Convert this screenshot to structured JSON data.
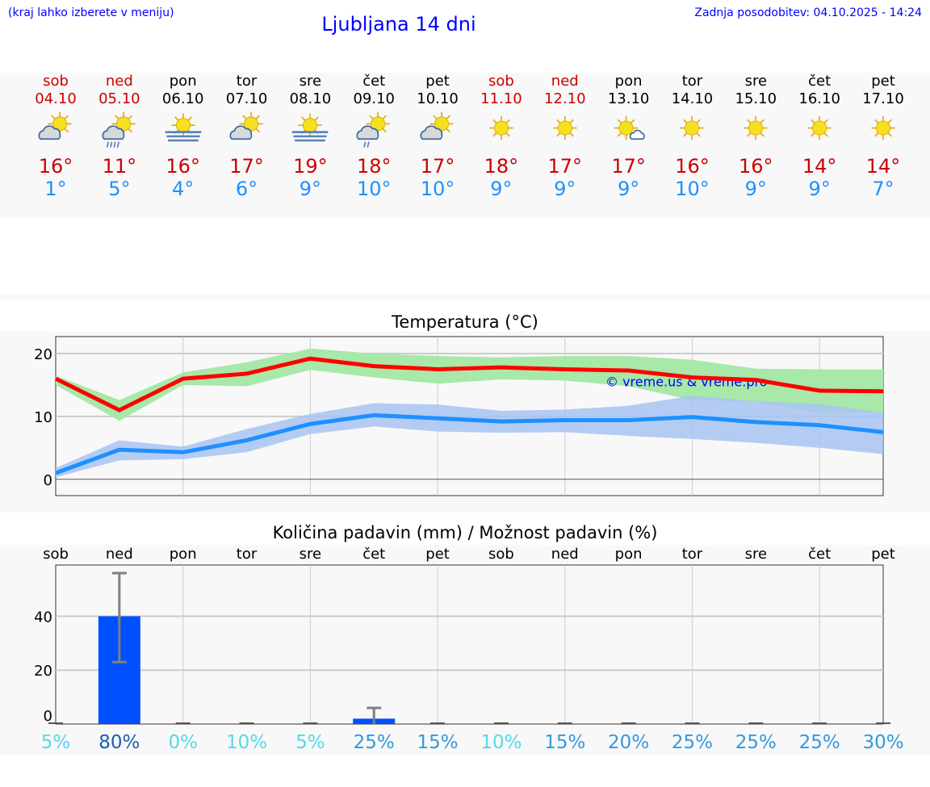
{
  "header": {
    "hint": "(kraj lahko izberete v meniju)",
    "title": "Ljubljana 14 dni",
    "updated": "Zadnja posodobitev: 04.10.2025 - 14:24"
  },
  "days": [
    {
      "name": "sob",
      "date": "04.10",
      "weekend": true,
      "icon": "partly-cloudy-icon",
      "max": "16°",
      "min": "1°"
    },
    {
      "name": "ned",
      "date": "05.10",
      "weekend": true,
      "icon": "partly-cloudy-rain-icon",
      "max": "11°",
      "min": "5°"
    },
    {
      "name": "pon",
      "date": "06.10",
      "weekend": false,
      "icon": "sun-fog-icon",
      "max": "16°",
      "min": "4°"
    },
    {
      "name": "tor",
      "date": "07.10",
      "weekend": false,
      "icon": "partly-cloudy-icon",
      "max": "17°",
      "min": "6°"
    },
    {
      "name": "sre",
      "date": "08.10",
      "weekend": false,
      "icon": "sun-fog-icon",
      "max": "19°",
      "min": "9°"
    },
    {
      "name": "čet",
      "date": "09.10",
      "weekend": false,
      "icon": "partly-cloudy-light-rain-icon",
      "max": "18°",
      "min": "10°"
    },
    {
      "name": "pet",
      "date": "10.10",
      "weekend": false,
      "icon": "partly-cloudy-icon",
      "max": "17°",
      "min": "10°"
    },
    {
      "name": "sob",
      "date": "11.10",
      "weekend": true,
      "icon": "sun-icon",
      "max": "18°",
      "min": "9°"
    },
    {
      "name": "ned",
      "date": "12.10",
      "weekend": true,
      "icon": "sun-icon",
      "max": "17°",
      "min": "9°"
    },
    {
      "name": "pon",
      "date": "13.10",
      "weekend": false,
      "icon": "sun-small-cloud-icon",
      "max": "17°",
      "min": "9°"
    },
    {
      "name": "tor",
      "date": "14.10",
      "weekend": false,
      "icon": "sun-icon",
      "max": "16°",
      "min": "10°"
    },
    {
      "name": "sre",
      "date": "15.10",
      "weekend": false,
      "icon": "sun-icon",
      "max": "16°",
      "min": "9°"
    },
    {
      "name": "čet",
      "date": "16.10",
      "weekend": false,
      "icon": "sun-icon",
      "max": "14°",
      "min": "9°"
    },
    {
      "name": "pet",
      "date": "17.10",
      "weekend": false,
      "icon": "sun-icon",
      "max": "14°",
      "min": "7°"
    }
  ],
  "colors": {
    "max": "#ff0000",
    "min": "#1e90ff",
    "max_band": "#a8e8a8",
    "min_band": "#a8c4f2",
    "bar": "#0050ff",
    "error": "#808080"
  },
  "chart_data": [
    {
      "type": "line",
      "title": "Temperatura (°C)",
      "ylim": [
        -2.6,
        22.7
      ],
      "yticks": [
        0,
        10,
        20
      ],
      "grid": true,
      "watermark": "© vreme.us & vreme.pro",
      "categories": [
        "04.10",
        "05.10",
        "06.10",
        "07.10",
        "08.10",
        "09.10",
        "10.10",
        "11.10",
        "12.10",
        "13.10",
        "14.10",
        "15.10",
        "16.10",
        "17.10"
      ],
      "series": [
        {
          "role": "max",
          "values": [
            16,
            11,
            16,
            16.8,
            19.2,
            18,
            17.5,
            17.8,
            17.5,
            17.3,
            16.2,
            15.8,
            14.1,
            14
          ],
          "upper": [
            16.5,
            12.6,
            17,
            18.6,
            20.8,
            20,
            19.6,
            19.4,
            19.6,
            19.6,
            19,
            17.6,
            17.5,
            17.5
          ],
          "lower": [
            15,
            9.3,
            15,
            14.8,
            17.4,
            16.2,
            15.2,
            15.9,
            15.7,
            14.8,
            12.6,
            12.3,
            10.5,
            10.6
          ]
        },
        {
          "role": "min",
          "values": [
            1,
            4.7,
            4.3,
            6.2,
            8.8,
            10.2,
            9.7,
            9.2,
            9.4,
            9.4,
            9.9,
            9.1,
            8.6,
            7.5
          ],
          "upper": [
            1.8,
            6.2,
            5.2,
            8,
            10.4,
            12.1,
            11.9,
            10.9,
            11.1,
            11.7,
            13.3,
            12.4,
            12,
            10.6
          ],
          "lower": [
            0.3,
            3,
            3.2,
            4.3,
            7.2,
            8.4,
            7.6,
            7.4,
            7.5,
            6.9,
            6.4,
            5.8,
            5,
            4
          ]
        }
      ]
    },
    {
      "type": "bar",
      "title": "Količina padavin (mm) / Možnost padavin (%)",
      "ylim": [
        0,
        59
      ],
      "yticks": [
        0,
        20,
        40
      ],
      "grid": true,
      "categories": [
        "sob",
        "ned",
        "pon",
        "tor",
        "sre",
        "čet",
        "pet",
        "sob",
        "ned",
        "pon",
        "tor",
        "sre",
        "čet",
        "pet"
      ],
      "values": [
        0,
        40,
        0,
        0,
        0,
        2,
        0,
        0,
        0,
        0,
        0,
        0,
        0,
        0
      ],
      "error_low": [
        0,
        23,
        0,
        0,
        0,
        0,
        0,
        0,
        0,
        0,
        0,
        0,
        0,
        0
      ],
      "error_high": [
        0,
        56,
        0,
        0,
        0,
        6,
        0,
        0,
        0,
        0,
        0,
        0,
        0,
        0
      ],
      "probability": [
        "5%",
        "80%",
        "0%",
        "10%",
        "5%",
        "25%",
        "15%",
        "10%",
        "15%",
        "20%",
        "25%",
        "25%",
        "25%",
        "30%"
      ]
    }
  ]
}
